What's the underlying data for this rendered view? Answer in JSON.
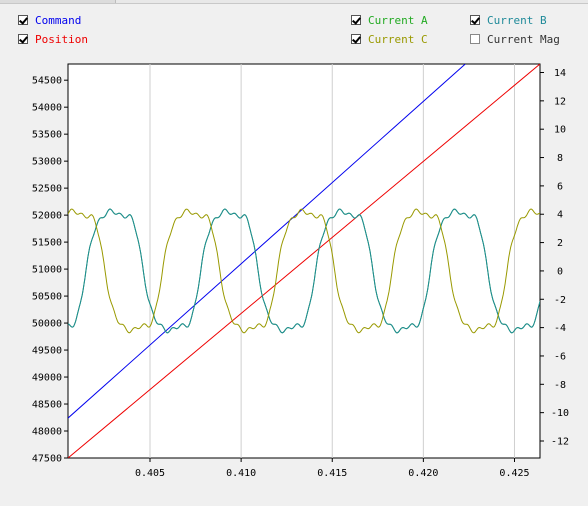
{
  "legend": [
    {
      "label": "Command",
      "color": "#0000ee",
      "checked": true
    },
    {
      "label": "Position",
      "color": "#ee0000",
      "checked": true
    },
    {
      "label": "Current A",
      "color": "#22aa22",
      "checked": true
    },
    {
      "label": "Current C",
      "color": "#999900",
      "checked": true
    },
    {
      "label": "Current B",
      "color": "#1f8a99",
      "checked": true
    },
    {
      "label": "Current Mag",
      "color": "#333333",
      "checked": false
    }
  ],
  "chart_data": {
    "type": "line",
    "title": "",
    "xlabel": "",
    "ylabel_left": "",
    "ylabel_right": "",
    "xlim": [
      0.4005,
      0.4264
    ],
    "ylim_left": [
      47500,
      54800
    ],
    "ylim_right": [
      -13.2,
      14.6
    ],
    "x_ticks": [
      "0.405",
      "0.410",
      "0.415",
      "0.420",
      "0.425"
    ],
    "y_ticks_left": [
      "47500",
      "48000",
      "48500",
      "49000",
      "49500",
      "50000",
      "50500",
      "51000",
      "51500",
      "52000",
      "52500",
      "53000",
      "53500",
      "54000",
      "54500"
    ],
    "y_ticks_right": [
      "-12",
      "-10",
      "-8",
      "-6",
      "-4",
      "-2",
      "0",
      "2",
      "4",
      "6",
      "8",
      "10",
      "12",
      "14"
    ],
    "grid": "vertical",
    "series": [
      {
        "name": "Command",
        "axis": "left",
        "color": "#0000ee",
        "x": [
          0.4005,
          0.4223
        ],
        "y": [
          48240,
          54800
        ]
      },
      {
        "name": "Position",
        "axis": "left",
        "color": "#ee0000",
        "x": [
          0.4005,
          0.4264
        ],
        "y": [
          47500,
          54800
        ]
      },
      {
        "name": "Current A",
        "axis": "right",
        "color": "#22aa22",
        "amplitude": 5.3,
        "period": 0.0063,
        "phase_x": 0.4015
      },
      {
        "name": "Current B",
        "axis": "right",
        "color": "#1f8a99",
        "amplitude": 5.3,
        "period": 0.0063,
        "phase_x": 0.4078
      },
      {
        "name": "Current C",
        "axis": "right",
        "color": "#999900",
        "amplitude": 5.3,
        "period": 0.0063,
        "phase_x": 0.4057
      }
    ]
  }
}
